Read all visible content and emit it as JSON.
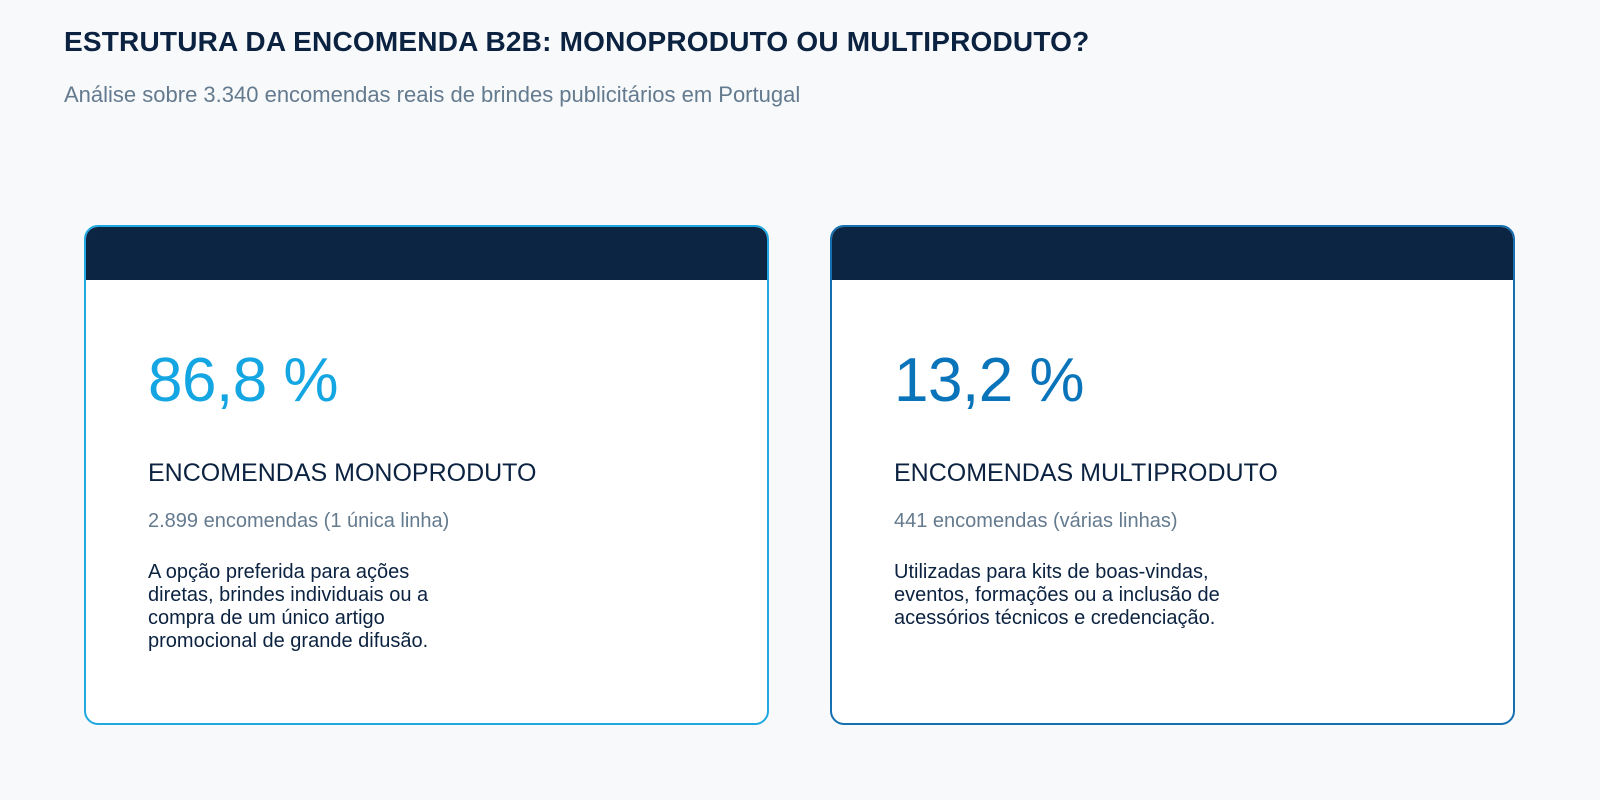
{
  "header": {
    "title": "ESTRUTURA DA ENCOMENDA B2B: MONOPRODUTO OU MULTIPRODUTO?",
    "subtitle": "Análise sobre 3.340 encomendas reais de brindes publicitários em Portugal"
  },
  "cards": [
    {
      "percentage": "86,8 %",
      "label": "ENCOMENDAS MONOPRODUTO",
      "count": "2.899 encomendas (1 única linha)",
      "description": "A opção preferida para ações diretas, brindes individuais ou a compra de um único artigo promocional de grande difusão.",
      "accent_color": "#14a6e3",
      "border_color": "#1fa9e0"
    },
    {
      "percentage": "13,2 %",
      "label": "ENCOMENDAS MULTIPRODUTO",
      "count": "441 encomendas (várias linhas)",
      "description": "Utilizadas para kits de boas-vindas, eventos, formações ou a inclusão de acessórios técnicos e credenciação.",
      "accent_color": "#0a74bb",
      "border_color": "#1670b0"
    }
  ]
}
